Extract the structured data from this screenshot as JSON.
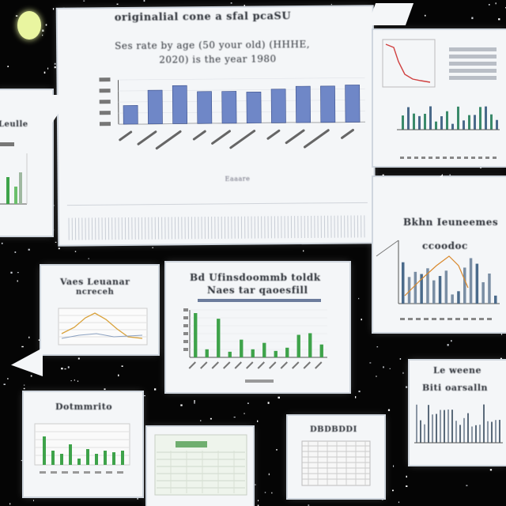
{
  "main_chart": {
    "header": "originalial cone a sfal pcaSU",
    "title_line1": "Ses rate by age (50 your old) (HHHE,",
    "title_line2": "2020) is the year 1980",
    "values": [
      21,
      38,
      43,
      36,
      36,
      35,
      38,
      41,
      41,
      42
    ],
    "ymax": 50,
    "bar_color": "#6f87c7",
    "xlabel": "Eaaare"
  },
  "card_a": {
    "title": "Vaes Leuanar",
    "subtitle": "ncreceh"
  },
  "card_b": {
    "title_line1": "Bd Ufinsdoommb toldk",
    "title_line2": "Naes tar qaoesfill",
    "values": [
      55,
      10,
      48,
      7,
      22,
      10,
      18,
      8,
      12,
      28,
      30,
      16
    ],
    "color": "#3ea34a"
  },
  "card_c": {
    "title": "Bkhn Ieuneemes",
    "subtitle": "ccoodoc"
  },
  "card_d": {
    "title": "Dotmmrito"
  },
  "card_e": {
    "title": "DBDBDDI"
  },
  "card_f": {
    "title_line1": "Le weene",
    "title_line2": "Biti oarsalln"
  },
  "left_card": {
    "title": "Leulle"
  },
  "colors": {
    "background": "#050505",
    "card": "#f4f6f8"
  }
}
